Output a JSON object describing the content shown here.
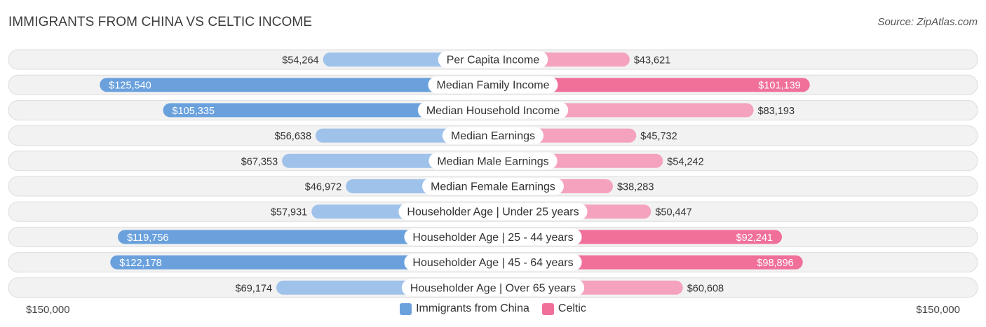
{
  "header": {
    "title": "IMMIGRANTS FROM CHINA VS CELTIC INCOME",
    "source": "Source: ZipAtlas.com"
  },
  "axis": {
    "left_label": "$150,000",
    "right_label": "$150,000"
  },
  "legend": {
    "items": [
      {
        "label": "Immigrants from China",
        "color": "#6aa1dd"
      },
      {
        "label": "Celtic",
        "color": "#f0709a"
      }
    ]
  },
  "colors": {
    "left_strong": "#6aa1dd",
    "left_light": "#9fc2ea",
    "right_strong": "#f0709a",
    "right_light": "#f4a2bd",
    "row_bg": "#f2f2f2",
    "row_border": "#dddddd"
  },
  "chart_data": {
    "type": "bar",
    "orientation": "horizontal-diverging",
    "title": "IMMIGRANTS FROM CHINA VS CELTIC INCOME",
    "xlim": [
      0,
      150000
    ],
    "categories": [
      "Per Capita Income",
      "Median Family Income",
      "Median Household Income",
      "Median Earnings",
      "Median Male Earnings",
      "Median Female Earnings",
      "Householder Age | Under 25 years",
      "Householder Age | 25 - 44 years",
      "Householder Age | 45 - 64 years",
      "Householder Age | Over 65 years"
    ],
    "series": [
      {
        "name": "Immigrants from China",
        "values": [
          54264,
          125540,
          105335,
          56638,
          67353,
          46972,
          57931,
          119756,
          122178,
          69174
        ],
        "labels": [
          "$54,264",
          "$125,540",
          "$105,335",
          "$56,638",
          "$67,353",
          "$46,972",
          "$57,931",
          "$119,756",
          "$122,178",
          "$69,174"
        ]
      },
      {
        "name": "Celtic",
        "values": [
          43621,
          101139,
          83193,
          45732,
          54242,
          38283,
          50447,
          92241,
          98896,
          60608
        ],
        "labels": [
          "$43,621",
          "$101,139",
          "$83,193",
          "$45,732",
          "$54,242",
          "$38,283",
          "$50,447",
          "$92,241",
          "$98,896",
          "$60,608"
        ]
      }
    ]
  }
}
